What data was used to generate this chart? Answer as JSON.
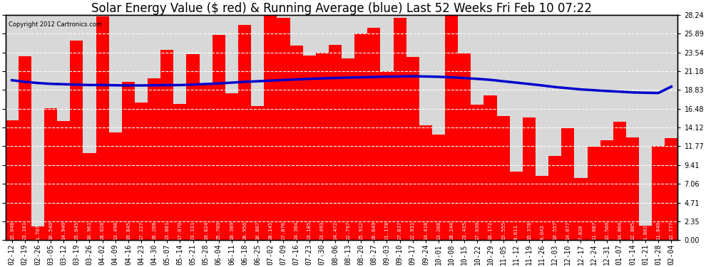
{
  "title": "Solar Energy Value ($ red) & Running Average (blue) Last 52 Weeks Fri Feb 10 07:22",
  "copyright": "Copyright 2012 Cartronics.com",
  "bar_color": "#ff0000",
  "line_color": "#0000cc",
  "background_color": "#ffffff",
  "plot_bg_color": "#d8d8d8",
  "yticks": [
    0.0,
    2.35,
    4.71,
    7.06,
    9.41,
    11.77,
    14.12,
    16.48,
    18.83,
    21.18,
    23.54,
    25.89,
    28.24
  ],
  "categories": [
    "02-12",
    "02-19",
    "02-26",
    "03-05",
    "03-12",
    "03-19",
    "03-26",
    "04-02",
    "04-09",
    "04-16",
    "04-23",
    "04-30",
    "05-07",
    "05-14",
    "05-21",
    "05-28",
    "06-04",
    "06-11",
    "06-18",
    "06-25",
    "07-02",
    "07-09",
    "07-16",
    "07-23",
    "07-30",
    "08-06",
    "08-13",
    "08-20",
    "08-27",
    "09-03",
    "09-10",
    "09-17",
    "09-24",
    "10-01",
    "10-08",
    "10-15",
    "10-22",
    "10-29",
    "11-05",
    "11-12",
    "11-19",
    "11-26",
    "12-03",
    "12-10",
    "12-17",
    "12-24",
    "12-31",
    "01-07",
    "01-14",
    "01-21",
    "01-28",
    "02-04"
  ],
  "values": [
    15.048,
    23.101,
    1.707,
    16.54,
    14.94,
    25.045,
    10.961,
    28.028,
    13.498,
    19.845,
    17.227,
    20.268,
    23.881,
    17.07,
    23.331,
    19.624,
    25.709,
    18.389,
    26.956,
    16.807,
    28.145,
    27.876,
    24.364,
    23.185,
    23.493,
    24.472,
    22.797,
    25.912,
    26.649,
    21.178,
    27.837,
    22.931,
    14.418,
    13.268,
    28.244,
    23.435,
    17.03,
    18.172,
    15.555,
    8.611,
    15.378,
    8.043,
    10.557,
    14.077,
    7.826,
    11.687,
    12.56,
    14.864,
    12.885,
    1.802,
    11.84,
    12.777
  ],
  "running_avg": [
    20.05,
    19.85,
    19.7,
    19.6,
    19.55,
    19.5,
    19.45,
    19.45,
    19.42,
    19.4,
    19.4,
    19.42,
    19.44,
    19.44,
    19.5,
    19.58,
    19.65,
    19.75,
    19.85,
    19.92,
    20.0,
    20.08,
    20.15,
    20.22,
    20.28,
    20.33,
    20.38,
    20.42,
    20.45,
    20.5,
    20.52,
    20.55,
    20.52,
    20.48,
    20.42,
    20.32,
    20.22,
    20.1,
    19.92,
    19.75,
    19.58,
    19.4,
    19.2,
    19.05,
    18.9,
    18.8,
    18.7,
    18.62,
    18.52,
    18.48,
    18.45,
    19.25
  ],
  "ylim": [
    0,
    28.24
  ],
  "grid_color": "#ffffff",
  "text_color": "#000000",
  "title_fontsize": 12,
  "tick_fontsize": 7,
  "bar_text_fontsize": 5.2,
  "figwidth": 9.9,
  "figheight": 3.75,
  "dpi": 100
}
